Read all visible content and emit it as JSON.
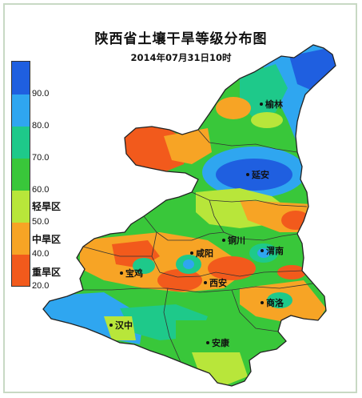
{
  "title": "陕西省土壤干旱等级分布图",
  "subtitle": "2014年07月31日10时",
  "legend": {
    "ticks": [
      "90.0",
      "80.0",
      "70.0",
      "60.0",
      "50.0",
      "40.0",
      "20.0"
    ],
    "classes": [
      "轻旱区",
      "中旱区",
      "重旱区"
    ],
    "colors": {
      "level_90": "#1f5fe0",
      "level_80": "#2fa6f0",
      "level_70": "#1ec98a",
      "level_60": "#39c73a",
      "level_50": "#b8e63a",
      "level_40": "#f7a425",
      "level_20": "#f25a1c"
    }
  },
  "cities": {
    "yulin": "榆林",
    "yanan": "延安",
    "tongchuan": "铜川",
    "weinan": "渭南",
    "xianyang": "咸阳",
    "baoji": "宝鸡",
    "xian": "西安",
    "shangluo": "商洛",
    "hanzhong": "汉中",
    "ankang": "安康"
  }
}
